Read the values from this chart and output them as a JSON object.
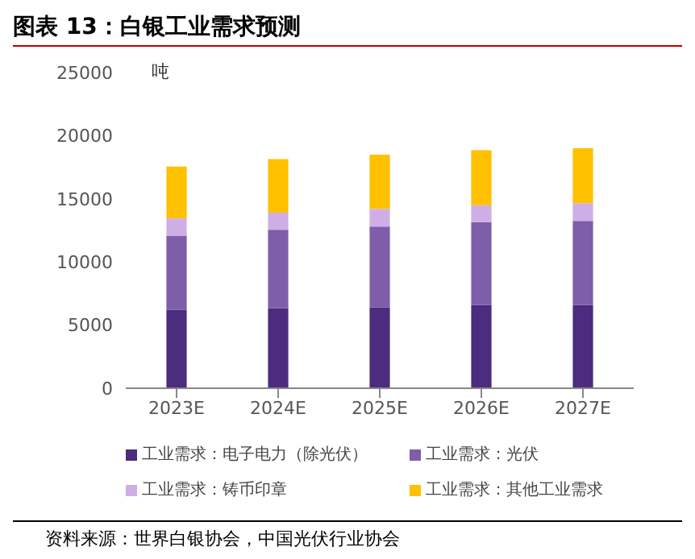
{
  "chart_data": {
    "type": "bar",
    "title": "图表 13：白银工业需求预测",
    "ylabel": "吨",
    "categories": [
      "2023E",
      "2024E",
      "2025E",
      "2026E",
      "2027E"
    ],
    "stacked": true,
    "series": [
      {
        "name": "工业需求：电子电力（除光伏）",
        "color": "#4b2c7f",
        "values": [
          6200,
          6350,
          6400,
          6600,
          6600
        ]
      },
      {
        "name": "工业需求：光伏",
        "color": "#7e5ea8",
        "values": [
          5850,
          6200,
          6400,
          6550,
          6650
        ]
      },
      {
        "name": "工业需求：铸币印章",
        "color": "#cfaee6",
        "values": [
          1400,
          1350,
          1400,
          1350,
          1400
        ]
      },
      {
        "name": "工业需求：其他工业需求",
        "color": "#ffc000",
        "values": [
          4100,
          4250,
          4300,
          4350,
          4350
        ]
      }
    ],
    "ylim": [
      0,
      25000
    ],
    "yticks": [
      0,
      5000,
      10000,
      15000,
      20000,
      25000
    ],
    "grid": false,
    "legend": "bottom",
    "annotations": [
      "资料来源：世界白银协会，中国光伏行业协会"
    ]
  }
}
